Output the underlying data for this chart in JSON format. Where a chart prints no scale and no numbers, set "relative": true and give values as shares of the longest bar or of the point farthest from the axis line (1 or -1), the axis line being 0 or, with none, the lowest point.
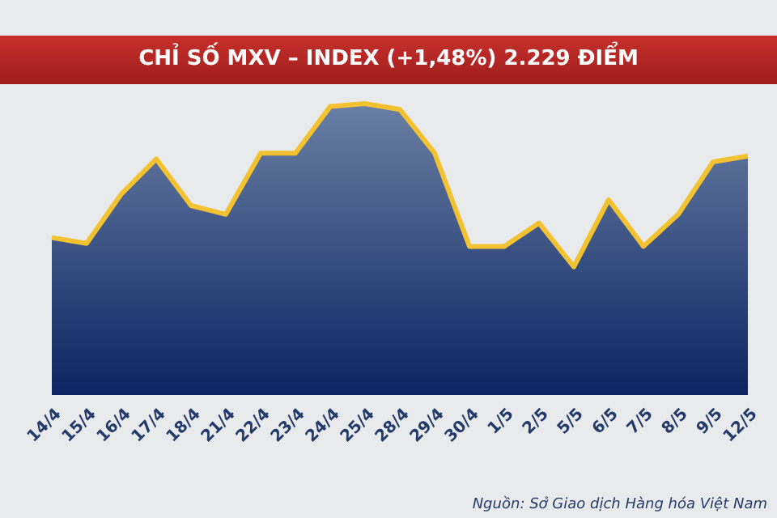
{
  "chart_data": {
    "type": "area",
    "title": "CHỈ SỐ MXV – INDEX (+1,48%) 2.229 ĐIỂM",
    "relative": true,
    "categories": [
      "14/4",
      "15/4",
      "16/4",
      "17/4",
      "18/4",
      "21/4",
      "22/4",
      "23/4",
      "24/4",
      "25/4",
      "28/4",
      "29/4",
      "30/4",
      "1/5",
      "2/5",
      "5/5",
      "6/5",
      "7/5",
      "8/5",
      "9/5",
      "12/5"
    ],
    "series": [
      {
        "color": "#f2c230",
        "values": [
          0.54,
          0.52,
          0.69,
          0.81,
          0.65,
          0.62,
          0.83,
          0.83,
          0.99,
          1,
          0.98,
          0.83,
          0.51,
          0.51,
          0.59,
          0.44,
          0.67,
          0.51,
          0.62,
          0.8,
          0.82
        ]
      }
    ],
    "annotations": [
      "Nguồn: Sở Giao dịch Hàng hóa Việt Nam"
    ]
  }
}
